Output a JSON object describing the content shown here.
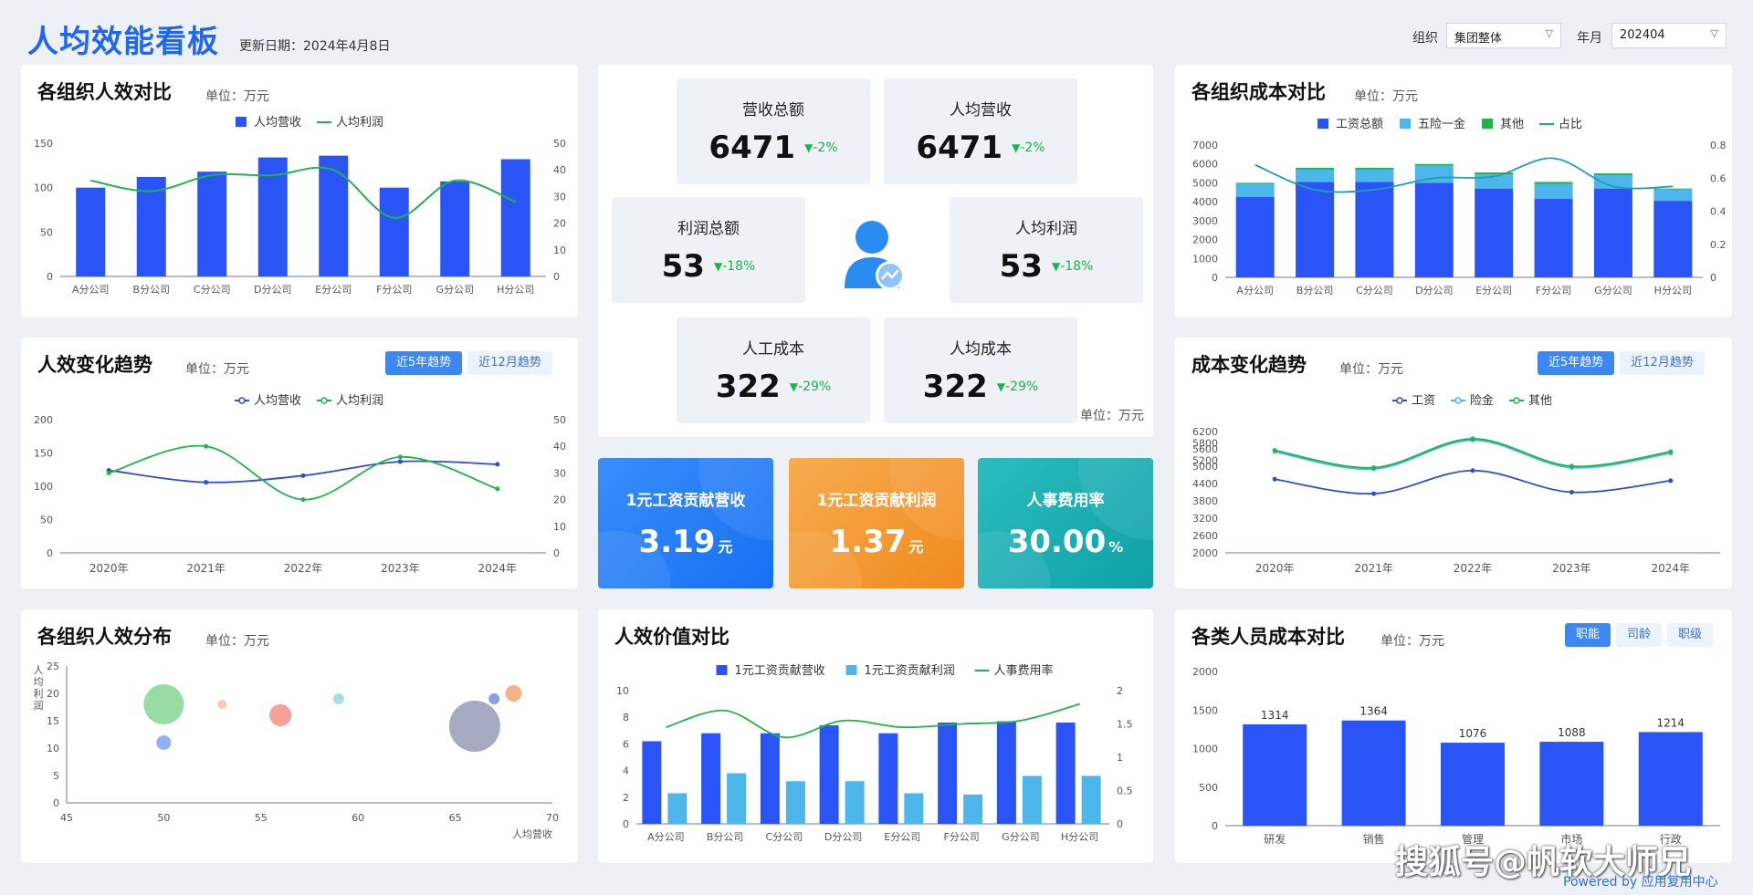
{
  "header": {
    "title": "人均效能看板",
    "update_date": "更新日期：2024年4月8日",
    "org_label": "组织",
    "org_value": "集团整体",
    "month_label": "年月",
    "month_value": "202404"
  },
  "colors": {
    "blue": "#2b54f6",
    "lightblue": "#4cb5ea",
    "green": "#21b44a",
    "darkblue": "#2b4bd8",
    "teal": "#1e9eb0"
  },
  "panels": {
    "p1": {
      "title": "各组织人效对比",
      "unit": "单位：万元"
    },
    "p2": {
      "title": "人效变化趋势",
      "unit": "单位：万元",
      "tab1": "近5年趋势",
      "tab2": "近12月趋势"
    },
    "p3": {
      "title": "各组织人效分布",
      "unit": "单位：万元"
    },
    "p4": {
      "title": "各组织成本对比",
      "unit": "单位：万元"
    },
    "p5": {
      "title": "成本变化趋势",
      "unit": "单位：万元",
      "tab1": "近5年趋势",
      "tab2": "近12月趋势"
    },
    "p6": {
      "title": "各类人员成本对比",
      "unit": "单位：万元",
      "tab1": "职能",
      "tab2": "司龄",
      "tab3": "职级"
    },
    "p7": {
      "title": "人效价值对比"
    }
  },
  "kpis": [
    {
      "label": "营收总额",
      "value": "6471",
      "change": "-2%"
    },
    {
      "label": "人均营收",
      "value": "6471",
      "change": "-2%"
    },
    {
      "label": "利润总额",
      "value": "53",
      "change": "-18%"
    },
    {
      "label": "人均利润",
      "value": "53",
      "change": "-18%"
    },
    {
      "label": "人工成本",
      "value": "322",
      "change": "-29%"
    },
    {
      "label": "人均成本",
      "value": "322",
      "change": "-29%"
    }
  ],
  "kpi_unit": "单位：万元",
  "rates": [
    {
      "label": "1元工资贡献营收",
      "value": "3.19",
      "unit": "元"
    },
    {
      "label": "1元工资贡献利润",
      "value": "1.37",
      "unit": "元"
    },
    {
      "label": "人事费用率",
      "value": "30.00",
      "unit": "%"
    }
  ],
  "watermark": "搜狐号@帆软大师兄",
  "powered": "Powered by 应用复用中心",
  "chart_data": [
    {
      "id": "org_efficiency",
      "type": "bar",
      "categories": [
        "A分公司",
        "B分公司",
        "C分公司",
        "D分公司",
        "E分公司",
        "F分公司",
        "G分公司",
        "H分公司"
      ],
      "series": [
        {
          "name": "人均营收",
          "type": "bar",
          "axis": "left",
          "values": [
            100,
            112,
            118,
            134,
            136,
            100,
            107,
            132
          ]
        },
        {
          "name": "人均利润",
          "type": "line",
          "axis": "right",
          "values": [
            36,
            32,
            38,
            38,
            40,
            22,
            36,
            28
          ]
        }
      ],
      "ylim": [
        0,
        150
      ],
      "yticks": [
        0,
        50,
        100,
        150
      ],
      "y2lim": [
        0,
        50
      ],
      "y2ticks": [
        0,
        10,
        20,
        30,
        40,
        50
      ],
      "legend": "top-center"
    },
    {
      "id": "efficiency_trend",
      "type": "line",
      "categories": [
        "2020年",
        "2021年",
        "2022年",
        "2023年",
        "2024年"
      ],
      "series": [
        {
          "name": "人均营收",
          "axis": "left",
          "values": [
            124,
            106,
            116,
            137,
            133
          ]
        },
        {
          "name": "人均利润",
          "axis": "right",
          "values": [
            30,
            40,
            20,
            36,
            24
          ]
        }
      ],
      "ylim": [
        0,
        200
      ],
      "yticks": [
        0,
        50,
        100,
        150,
        200
      ],
      "y2lim": [
        0,
        50
      ],
      "y2ticks": [
        0,
        10,
        20,
        30,
        40,
        50
      ],
      "legend": "top-center"
    },
    {
      "id": "efficiency_distribution",
      "type": "scatter",
      "xlabel": "人均营收",
      "ylabel": "人均利润",
      "xlim": [
        45,
        70
      ],
      "xticks": [
        45,
        50,
        55,
        60,
        65,
        70
      ],
      "ylim": [
        0,
        25
      ],
      "yticks": [
        0,
        5,
        10,
        15,
        20,
        25
      ],
      "points": [
        {
          "x": 50,
          "y": 18,
          "r": 22,
          "color": "#7dd38f"
        },
        {
          "x": 50,
          "y": 11,
          "r": 8,
          "color": "#6f9ff0"
        },
        {
          "x": 53,
          "y": 18,
          "r": 5,
          "color": "#f3c09a"
        },
        {
          "x": 56,
          "y": 16,
          "r": 12,
          "color": "#f28a7e"
        },
        {
          "x": 59,
          "y": 19,
          "r": 6,
          "color": "#8ed8d9"
        },
        {
          "x": 66,
          "y": 14,
          "r": 28,
          "color": "#8f93b1"
        },
        {
          "x": 67,
          "y": 19,
          "r": 6,
          "color": "#6b86e6"
        },
        {
          "x": 68,
          "y": 20,
          "r": 9,
          "color": "#f2a066"
        }
      ]
    },
    {
      "id": "org_cost",
      "type": "bar",
      "stacked": true,
      "categories": [
        "A分公司",
        "B分公司",
        "C分公司",
        "D分公司",
        "E分公司",
        "F分公司",
        "G分公司",
        "H分公司"
      ],
      "series": [
        {
          "name": "工资总额",
          "axis": "left",
          "values": [
            4250,
            5050,
            5050,
            5000,
            4700,
            4150,
            4700,
            4050
          ]
        },
        {
          "name": "五险一金",
          "axis": "left",
          "values": [
            700,
            650,
            650,
            900,
            750,
            800,
            700,
            600
          ]
        },
        {
          "name": "其他",
          "axis": "left",
          "values": [
            50,
            100,
            100,
            100,
            100,
            100,
            100,
            50
          ]
        },
        {
          "name": "占比",
          "type": "line",
          "axis": "right",
          "values": [
            0.68,
            0.53,
            0.53,
            0.6,
            0.61,
            0.72,
            0.55,
            0.55
          ]
        }
      ],
      "ylim": [
        0,
        7000
      ],
      "yticks": [
        0,
        1000,
        2000,
        3000,
        4000,
        5000,
        6000,
        7000
      ],
      "y2lim": [
        0,
        0.8
      ],
      "y2ticks": [
        0,
        0.2,
        0.4,
        0.6,
        0.8
      ],
      "legend": "top-center"
    },
    {
      "id": "cost_trend",
      "type": "line",
      "categories": [
        "2020年",
        "2021年",
        "2022年",
        "2023年",
        "2024年"
      ],
      "series": [
        {
          "name": "工资",
          "values": [
            4550,
            4050,
            4850,
            4100,
            4500
          ]
        },
        {
          "name": "险金",
          "values": [
            5500,
            4900,
            5900,
            4950,
            5450
          ]
        },
        {
          "name": "其他",
          "values": [
            5550,
            4950,
            5950,
            5000,
            5500
          ]
        }
      ],
      "ylim": [
        2000,
        6200
      ],
      "yticks": [
        2000,
        2600,
        3200,
        3800,
        4400,
        5000,
        5600,
        6200
      ],
      "extra_ticks": [
        5200,
        5800
      ],
      "legend": "top-center"
    },
    {
      "id": "staff_cost",
      "type": "bar",
      "categories": [
        "研发",
        "销售",
        "管理",
        "市场",
        "行政"
      ],
      "series": [
        {
          "name": "成本",
          "values": [
            1314,
            1364,
            1076,
            1088,
            1214
          ]
        }
      ],
      "ylim": [
        0,
        2000
      ],
      "yticks": [
        0,
        500,
        1000,
        1500,
        2000
      ]
    },
    {
      "id": "value_compare",
      "type": "bar",
      "categories": [
        "A分公司",
        "B分公司",
        "C分公司",
        "D分公司",
        "E分公司",
        "F分公司",
        "G分公司",
        "H分公司"
      ],
      "series": [
        {
          "name": "1元工资贡献营收",
          "axis": "left",
          "values": [
            6.2,
            6.8,
            6.8,
            7.4,
            6.8,
            7.6,
            7.7,
            7.6
          ]
        },
        {
          "name": "1元工资贡献利润",
          "axis": "left",
          "values": [
            2.3,
            3.8,
            3.2,
            3.2,
            2.3,
            2.2,
            3.6,
            3.6
          ]
        },
        {
          "name": "人事费用率",
          "type": "line",
          "axis": "right",
          "values": [
            1.45,
            1.7,
            1.3,
            1.55,
            1.45,
            1.5,
            1.55,
            1.8
          ]
        }
      ],
      "ylim": [
        0,
        10
      ],
      "yticks": [
        0,
        2,
        4,
        6,
        8,
        10
      ],
      "y2lim": [
        0,
        2
      ],
      "y2ticks": [
        0,
        0.5,
        1,
        1.5,
        2
      ],
      "legend": "top-center"
    }
  ]
}
